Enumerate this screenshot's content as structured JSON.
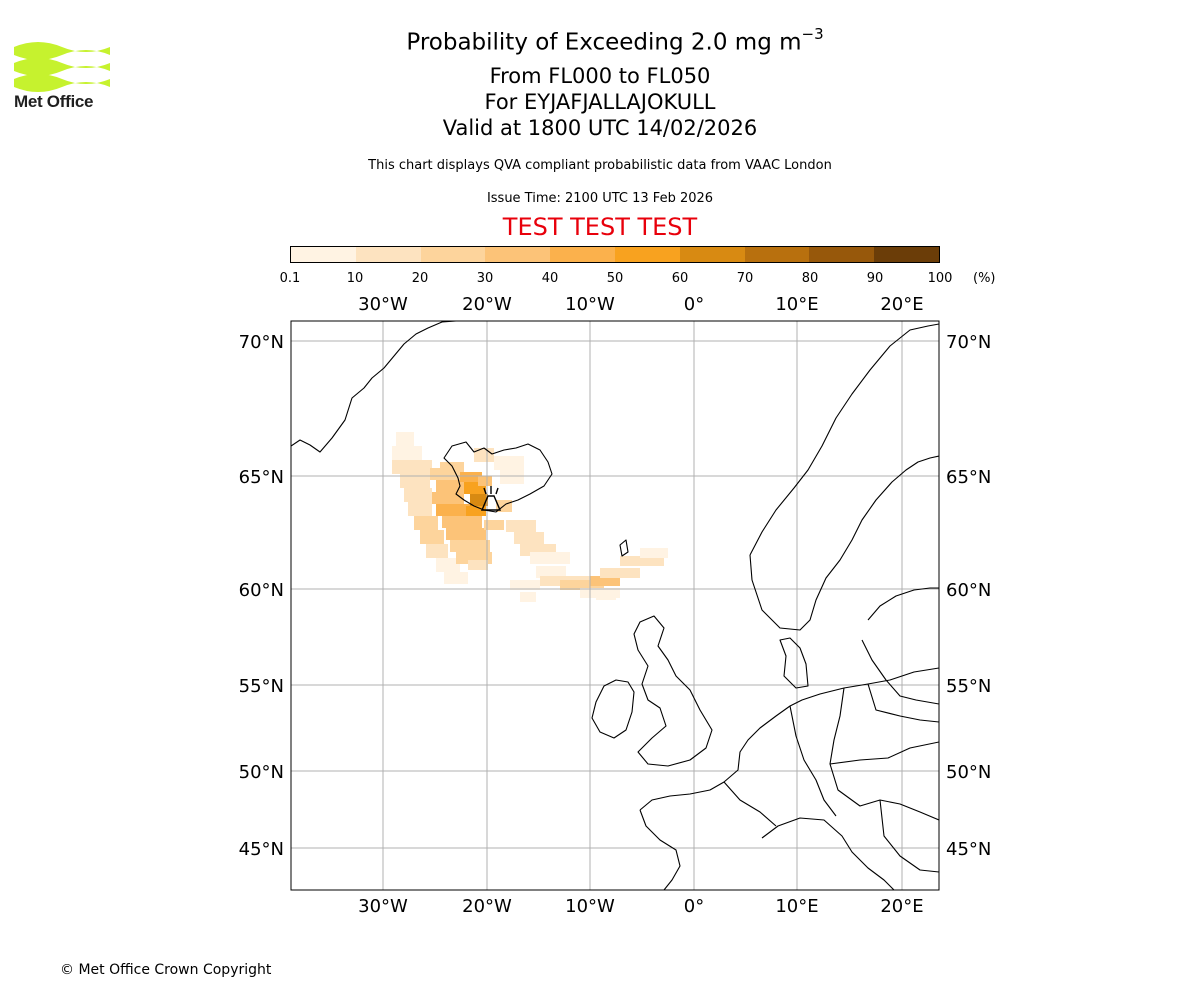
{
  "logo": {
    "text": "Met Office"
  },
  "header": {
    "title_prefix": "Probability of Exceeding 2.0 mg m",
    "title_exponent": "−3",
    "levels": "From FL000 to FL050",
    "volcano": "For EYJAFJALLAJOKULL",
    "valid": "Valid at 1800 UTC 14/02/2026",
    "description": "This chart displays QVA compliant probabilistic data from VAAC London",
    "issue_time": "Issue Time: 2100 UTC 13 Feb 2026",
    "test_banner": "TEST TEST TEST"
  },
  "colorbar": {
    "unit": "(%)",
    "ticks": [
      "0.1",
      "10",
      "20",
      "30",
      "40",
      "50",
      "60",
      "70",
      "80",
      "90",
      "100"
    ],
    "colors": [
      "#fff3e3",
      "#fde3c0",
      "#fdd49c",
      "#fcc378",
      "#fbb14c",
      "#f8a21f",
      "#d88a12",
      "#b8700e",
      "#97580b",
      "#6b3d08"
    ]
  },
  "map": {
    "lon_labels": [
      "30°W",
      "20°W",
      "10°W",
      "0°",
      "10°E",
      "20°E"
    ],
    "lat_labels": [
      "70°N",
      "65°N",
      "60°N",
      "55°N",
      "50°N",
      "45°N"
    ],
    "grid_color": "#b0b0b0",
    "volcano_marker": "volcano-icon"
  },
  "footer": {
    "copyright": "© Met Office Crown Copyright"
  }
}
